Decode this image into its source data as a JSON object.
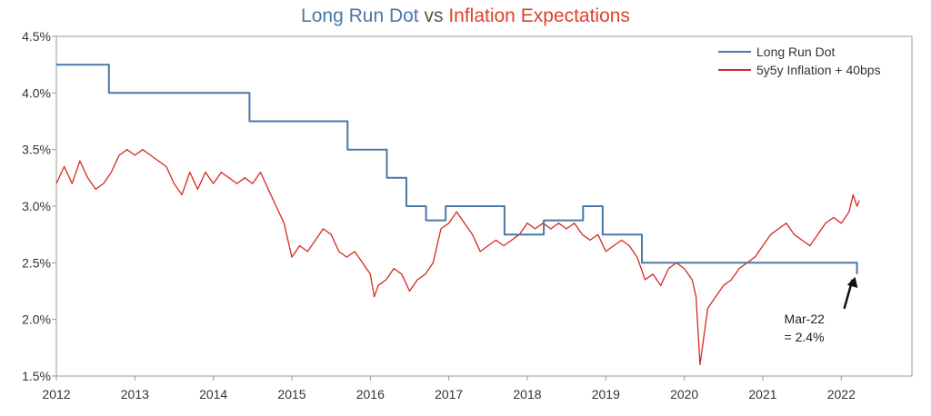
{
  "chart_data": {
    "type": "line",
    "title": {
      "part1": "Long Run Dot",
      "part2": " vs ",
      "part3": "Inflation Expectations"
    },
    "xlabel": "",
    "ylabel": "",
    "xlim": [
      2012.0,
      2022.9
    ],
    "ylim": [
      1.5,
      4.5
    ],
    "x_ticks": [
      {
        "value": 2012,
        "label": "2012"
      },
      {
        "value": 2013,
        "label": "2013"
      },
      {
        "value": 2014,
        "label": "2014"
      },
      {
        "value": 2015,
        "label": "2015"
      },
      {
        "value": 2016,
        "label": "2016"
      },
      {
        "value": 2017,
        "label": "2017"
      },
      {
        "value": 2018,
        "label": "2018"
      },
      {
        "value": 2019,
        "label": "2019"
      },
      {
        "value": 2020,
        "label": "2020"
      },
      {
        "value": 2021,
        "label": "2021"
      },
      {
        "value": 2022,
        "label": "2022"
      }
    ],
    "y_ticks": [
      {
        "value": 1.5,
        "label": "1.5%"
      },
      {
        "value": 2.0,
        "label": "2.0%"
      },
      {
        "value": 2.5,
        "label": "2.5%"
      },
      {
        "value": 3.0,
        "label": "3.0%"
      },
      {
        "value": 3.5,
        "label": "3.5%"
      },
      {
        "value": 4.0,
        "label": "4.0%"
      },
      {
        "value": 4.5,
        "label": "4.5%"
      }
    ],
    "grid": false,
    "legend": {
      "placement": "top-right"
    },
    "colors": {
      "long_run_dot": "#4a78a8",
      "inflation": "#d42b1e",
      "title_blue": "#4a78a8",
      "title_red": "#e0402a",
      "title_gray": "#555555",
      "axis": "#999999"
    },
    "series": [
      {
        "name": "Long Run Dot",
        "style": "step",
        "points": [
          [
            2012.0,
            4.25
          ],
          [
            2012.67,
            4.25
          ],
          [
            2012.67,
            4.0
          ],
          [
            2014.46,
            4.0
          ],
          [
            2014.46,
            3.75
          ],
          [
            2015.71,
            3.75
          ],
          [
            2015.71,
            3.5
          ],
          [
            2016.21,
            3.5
          ],
          [
            2016.21,
            3.25
          ],
          [
            2016.46,
            3.25
          ],
          [
            2016.46,
            3.0
          ],
          [
            2016.71,
            3.0
          ],
          [
            2016.71,
            2.875
          ],
          [
            2016.96,
            2.875
          ],
          [
            2016.96,
            3.0
          ],
          [
            2017.71,
            3.0
          ],
          [
            2017.71,
            2.75
          ],
          [
            2018.21,
            2.75
          ],
          [
            2018.21,
            2.875
          ],
          [
            2018.71,
            2.875
          ],
          [
            2018.71,
            3.0
          ],
          [
            2018.96,
            3.0
          ],
          [
            2018.96,
            2.75
          ],
          [
            2019.46,
            2.75
          ],
          [
            2019.46,
            2.5
          ],
          [
            2022.2,
            2.5
          ],
          [
            2022.2,
            2.4
          ]
        ]
      },
      {
        "name": "5y5y Inflation + 40bps",
        "style": "line",
        "points": [
          [
            2012.0,
            3.2
          ],
          [
            2012.1,
            3.35
          ],
          [
            2012.2,
            3.2
          ],
          [
            2012.3,
            3.4
          ],
          [
            2012.4,
            3.25
          ],
          [
            2012.5,
            3.15
          ],
          [
            2012.6,
            3.2
          ],
          [
            2012.7,
            3.3
          ],
          [
            2012.8,
            3.45
          ],
          [
            2012.9,
            3.5
          ],
          [
            2013.0,
            3.45
          ],
          [
            2013.1,
            3.5
          ],
          [
            2013.2,
            3.45
          ],
          [
            2013.3,
            3.4
          ],
          [
            2013.4,
            3.35
          ],
          [
            2013.5,
            3.2
          ],
          [
            2013.6,
            3.1
          ],
          [
            2013.7,
            3.3
          ],
          [
            2013.8,
            3.15
          ],
          [
            2013.9,
            3.3
          ],
          [
            2014.0,
            3.2
          ],
          [
            2014.1,
            3.3
          ],
          [
            2014.2,
            3.25
          ],
          [
            2014.3,
            3.2
          ],
          [
            2014.4,
            3.25
          ],
          [
            2014.5,
            3.2
          ],
          [
            2014.6,
            3.3
          ],
          [
            2014.7,
            3.15
          ],
          [
            2014.8,
            3.0
          ],
          [
            2014.9,
            2.85
          ],
          [
            2015.0,
            2.55
          ],
          [
            2015.1,
            2.65
          ],
          [
            2015.2,
            2.6
          ],
          [
            2015.3,
            2.7
          ],
          [
            2015.4,
            2.8
          ],
          [
            2015.5,
            2.75
          ],
          [
            2015.6,
            2.6
          ],
          [
            2015.7,
            2.55
          ],
          [
            2015.8,
            2.6
          ],
          [
            2015.9,
            2.5
          ],
          [
            2016.0,
            2.4
          ],
          [
            2016.05,
            2.2
          ],
          [
            2016.1,
            2.3
          ],
          [
            2016.2,
            2.35
          ],
          [
            2016.3,
            2.45
          ],
          [
            2016.4,
            2.4
          ],
          [
            2016.5,
            2.25
          ],
          [
            2016.6,
            2.35
          ],
          [
            2016.7,
            2.4
          ],
          [
            2016.8,
            2.5
          ],
          [
            2016.9,
            2.8
          ],
          [
            2017.0,
            2.85
          ],
          [
            2017.1,
            2.95
          ],
          [
            2017.2,
            2.85
          ],
          [
            2017.3,
            2.75
          ],
          [
            2017.4,
            2.6
          ],
          [
            2017.5,
            2.65
          ],
          [
            2017.6,
            2.7
          ],
          [
            2017.7,
            2.65
          ],
          [
            2017.8,
            2.7
          ],
          [
            2017.9,
            2.75
          ],
          [
            2018.0,
            2.85
          ],
          [
            2018.1,
            2.8
          ],
          [
            2018.2,
            2.85
          ],
          [
            2018.3,
            2.8
          ],
          [
            2018.4,
            2.85
          ],
          [
            2018.5,
            2.8
          ],
          [
            2018.6,
            2.85
          ],
          [
            2018.7,
            2.75
          ],
          [
            2018.8,
            2.7
          ],
          [
            2018.9,
            2.75
          ],
          [
            2019.0,
            2.6
          ],
          [
            2019.1,
            2.65
          ],
          [
            2019.2,
            2.7
          ],
          [
            2019.3,
            2.65
          ],
          [
            2019.4,
            2.55
          ],
          [
            2019.5,
            2.35
          ],
          [
            2019.6,
            2.4
          ],
          [
            2019.7,
            2.3
          ],
          [
            2019.8,
            2.45
          ],
          [
            2019.9,
            2.5
          ],
          [
            2020.0,
            2.45
          ],
          [
            2020.1,
            2.35
          ],
          [
            2020.15,
            2.2
          ],
          [
            2020.2,
            1.6
          ],
          [
            2020.25,
            1.85
          ],
          [
            2020.3,
            2.1
          ],
          [
            2020.4,
            2.2
          ],
          [
            2020.5,
            2.3
          ],
          [
            2020.6,
            2.35
          ],
          [
            2020.7,
            2.45
          ],
          [
            2020.8,
            2.5
          ],
          [
            2020.9,
            2.55
          ],
          [
            2021.0,
            2.65
          ],
          [
            2021.1,
            2.75
          ],
          [
            2021.2,
            2.8
          ],
          [
            2021.3,
            2.85
          ],
          [
            2021.4,
            2.75
          ],
          [
            2021.5,
            2.7
          ],
          [
            2021.6,
            2.65
          ],
          [
            2021.7,
            2.75
          ],
          [
            2021.8,
            2.85
          ],
          [
            2021.9,
            2.9
          ],
          [
            2022.0,
            2.85
          ],
          [
            2022.1,
            2.95
          ],
          [
            2022.15,
            3.1
          ],
          [
            2022.2,
            3.0
          ],
          [
            2022.23,
            3.05
          ]
        ]
      }
    ],
    "annotation": {
      "lines": [
        "Mar-22",
        "= 2.4%"
      ],
      "target": [
        2022.2,
        2.4
      ],
      "text_at": [
        2021.25,
        1.95
      ]
    }
  }
}
